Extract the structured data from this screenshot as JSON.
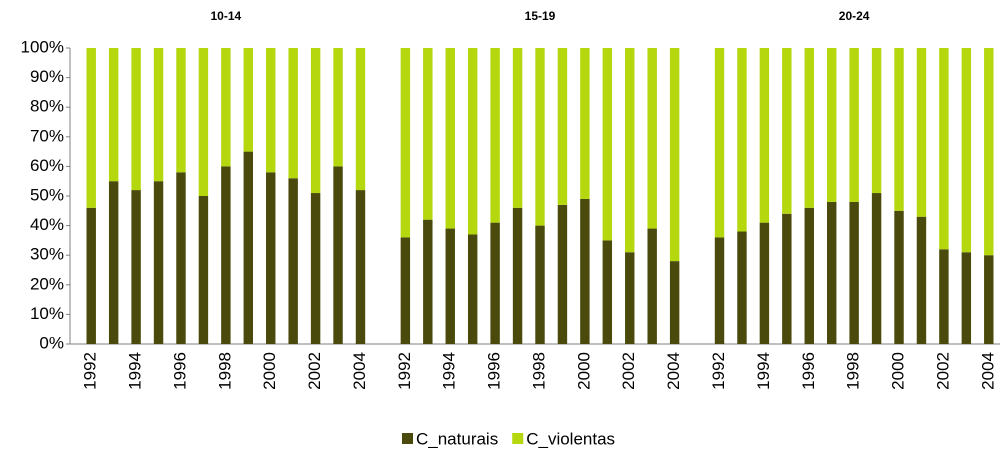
{
  "chart_data": {
    "type": "stacked_bar",
    "ylim": [
      0,
      100
    ],
    "yticks": [
      {
        "value": 0,
        "label": "0%"
      },
      {
        "value": 10,
        "label": "10%"
      },
      {
        "value": 20,
        "label": "20%"
      },
      {
        "value": 30,
        "label": "30%"
      },
      {
        "value": 40,
        "label": "40%"
      },
      {
        "value": 50,
        "label": "50%"
      },
      {
        "value": 60,
        "label": "60%"
      },
      {
        "value": 70,
        "label": "70%"
      },
      {
        "value": 80,
        "label": "80%"
      },
      {
        "value": 90,
        "label": "90%"
      },
      {
        "value": 100,
        "label": "100%"
      }
    ],
    "legend": "bottom",
    "series_legend": [
      {
        "name": "C_naturais",
        "color": "#4a4a0c"
      },
      {
        "name": "C_violentas",
        "color": "#b4d70e"
      }
    ],
    "groups": [
      {
        "name": "10-14",
        "categories": [
          "1992",
          null,
          "1994",
          null,
          "1996",
          null,
          "1998",
          null,
          "2000",
          null,
          "2002",
          null,
          "2004"
        ],
        "series": [
          {
            "values": [
              46,
              55,
              52,
              55,
              58,
              50,
              60,
              65,
              58,
              56,
              51,
              60,
              52
            ]
          },
          {
            "values": [
              54,
              45,
              48,
              45,
              42,
              50,
              40,
              35,
              42,
              44,
              49,
              40,
              48
            ]
          }
        ]
      },
      {
        "name": "15-19",
        "categories": [
          "1992",
          null,
          "1994",
          null,
          "1996",
          null,
          "1998",
          null,
          "2000",
          null,
          "2002",
          null,
          "2004"
        ],
        "series": [
          {
            "values": [
              36,
              42,
              39,
              37,
              41,
              46,
              40,
              47,
              49,
              35,
              31,
              39,
              28
            ]
          },
          {
            "values": [
              64,
              58,
              61,
              63,
              59,
              54,
              60,
              53,
              51,
              65,
              69,
              61,
              72
            ]
          }
        ]
      },
      {
        "name": "20-24",
        "categories": [
          "1992",
          null,
          "1994",
          null,
          "1996",
          null,
          "1998",
          null,
          "2000",
          null,
          "2002",
          null,
          "2004"
        ],
        "series": [
          {
            "values": [
              36,
              38,
              41,
              44,
              46,
              48,
              48,
              51,
              45,
              43,
              32,
              31,
              30
            ]
          },
          {
            "values": [
              64,
              62,
              59,
              56,
              54,
              52,
              52,
              49,
              55,
              57,
              68,
              69,
              70
            ]
          }
        ]
      }
    ]
  }
}
